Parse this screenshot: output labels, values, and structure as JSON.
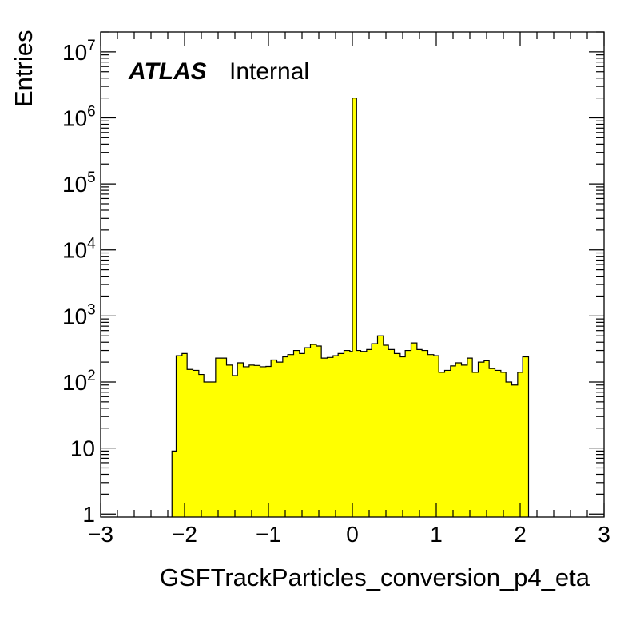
{
  "chart_data": {
    "type": "bar",
    "style": "histogram",
    "xlabel": "GSFTrackParticles_conversion_p4_eta",
    "ylabel": "Entries",
    "label_bold": "ATLAS",
    "label_text": "Internal",
    "xlim": [
      -3,
      3
    ],
    "ylim": [
      0.9,
      20000000
    ],
    "ylog": true,
    "x_ticks": [
      "−3",
      "−2",
      "−1",
      "0",
      "1",
      "2",
      "3"
    ],
    "y_ticks": [
      {
        "base": "",
        "exp": "",
        "full": "1"
      },
      {
        "base": "",
        "exp": "",
        "full": "10"
      },
      {
        "base": "10",
        "exp": "2",
        "full": ""
      },
      {
        "base": "10",
        "exp": "3",
        "full": ""
      },
      {
        "base": "10",
        "exp": "4",
        "full": ""
      },
      {
        "base": "10",
        "exp": "5",
        "full": ""
      },
      {
        "base": "10",
        "exp": "6",
        "full": ""
      },
      {
        "base": "10",
        "exp": "7",
        "full": ""
      }
    ],
    "fill_color": "#ffff00",
    "line_color": "#000000",
    "bins": [
      {
        "lo": -2.15,
        "hi": -2.1,
        "v": 9
      },
      {
        "lo": -2.1,
        "hi": -2.03,
        "v": 250
      },
      {
        "lo": -2.03,
        "hi": -1.97,
        "v": 270
      },
      {
        "lo": -1.97,
        "hi": -1.9,
        "v": 155
      },
      {
        "lo": -1.9,
        "hi": -1.83,
        "v": 150
      },
      {
        "lo": -1.83,
        "hi": -1.77,
        "v": 130
      },
      {
        "lo": -1.77,
        "hi": -1.7,
        "v": 100
      },
      {
        "lo": -1.7,
        "hi": -1.63,
        "v": 100
      },
      {
        "lo": -1.63,
        "hi": -1.57,
        "v": 230
      },
      {
        "lo": -1.57,
        "hi": -1.5,
        "v": 230
      },
      {
        "lo": -1.5,
        "hi": -1.43,
        "v": 180
      },
      {
        "lo": -1.43,
        "hi": -1.37,
        "v": 125
      },
      {
        "lo": -1.37,
        "hi": -1.3,
        "v": 195
      },
      {
        "lo": -1.3,
        "hi": -1.23,
        "v": 170
      },
      {
        "lo": -1.23,
        "hi": -1.17,
        "v": 180
      },
      {
        "lo": -1.17,
        "hi": -1.1,
        "v": 178
      },
      {
        "lo": -1.1,
        "hi": -1.03,
        "v": 170
      },
      {
        "lo": -1.03,
        "hi": -0.97,
        "v": 172
      },
      {
        "lo": -0.97,
        "hi": -0.9,
        "v": 215
      },
      {
        "lo": -0.9,
        "hi": -0.83,
        "v": 200
      },
      {
        "lo": -0.83,
        "hi": -0.77,
        "v": 240
      },
      {
        "lo": -0.77,
        "hi": -0.7,
        "v": 260
      },
      {
        "lo": -0.7,
        "hi": -0.63,
        "v": 300
      },
      {
        "lo": -0.63,
        "hi": -0.57,
        "v": 270
      },
      {
        "lo": -0.57,
        "hi": -0.5,
        "v": 330
      },
      {
        "lo": -0.5,
        "hi": -0.43,
        "v": 370
      },
      {
        "lo": -0.43,
        "hi": -0.37,
        "v": 350
      },
      {
        "lo": -0.37,
        "hi": -0.3,
        "v": 230
      },
      {
        "lo": -0.3,
        "hi": -0.23,
        "v": 235
      },
      {
        "lo": -0.23,
        "hi": -0.17,
        "v": 250
      },
      {
        "lo": -0.17,
        "hi": -0.1,
        "v": 270
      },
      {
        "lo": -0.1,
        "hi": -0.03,
        "v": 300
      },
      {
        "lo": -0.03,
        "hi": 0.0,
        "v": 290
      },
      {
        "lo": 0.0,
        "hi": 0.05,
        "v": 2000000
      },
      {
        "lo": 0.05,
        "hi": 0.1,
        "v": 300
      },
      {
        "lo": 0.1,
        "hi": 0.17,
        "v": 290
      },
      {
        "lo": 0.17,
        "hi": 0.23,
        "v": 310
      },
      {
        "lo": 0.23,
        "hi": 0.3,
        "v": 380
      },
      {
        "lo": 0.3,
        "hi": 0.37,
        "v": 500
      },
      {
        "lo": 0.37,
        "hi": 0.43,
        "v": 360
      },
      {
        "lo": 0.43,
        "hi": 0.5,
        "v": 310
      },
      {
        "lo": 0.5,
        "hi": 0.57,
        "v": 270
      },
      {
        "lo": 0.57,
        "hi": 0.63,
        "v": 240
      },
      {
        "lo": 0.63,
        "hi": 0.7,
        "v": 300
      },
      {
        "lo": 0.7,
        "hi": 0.77,
        "v": 390
      },
      {
        "lo": 0.77,
        "hi": 0.83,
        "v": 310
      },
      {
        "lo": 0.83,
        "hi": 0.9,
        "v": 300
      },
      {
        "lo": 0.9,
        "hi": 0.97,
        "v": 260
      },
      {
        "lo": 0.97,
        "hi": 1.03,
        "v": 250
      },
      {
        "lo": 1.03,
        "hi": 1.1,
        "v": 140
      },
      {
        "lo": 1.1,
        "hi": 1.17,
        "v": 150
      },
      {
        "lo": 1.17,
        "hi": 1.23,
        "v": 175
      },
      {
        "lo": 1.23,
        "hi": 1.3,
        "v": 195
      },
      {
        "lo": 1.3,
        "hi": 1.37,
        "v": 180
      },
      {
        "lo": 1.37,
        "hi": 1.43,
        "v": 230
      },
      {
        "lo": 1.43,
        "hi": 1.5,
        "v": 140
      },
      {
        "lo": 1.5,
        "hi": 1.57,
        "v": 200
      },
      {
        "lo": 1.57,
        "hi": 1.63,
        "v": 210
      },
      {
        "lo": 1.63,
        "hi": 1.7,
        "v": 160
      },
      {
        "lo": 1.7,
        "hi": 1.77,
        "v": 150
      },
      {
        "lo": 1.77,
        "hi": 1.83,
        "v": 140
      },
      {
        "lo": 1.83,
        "hi": 1.9,
        "v": 100
      },
      {
        "lo": 1.9,
        "hi": 1.97,
        "v": 90
      },
      {
        "lo": 1.97,
        "hi": 2.03,
        "v": 140
      },
      {
        "lo": 2.03,
        "hi": 2.1,
        "v": 240
      }
    ]
  }
}
